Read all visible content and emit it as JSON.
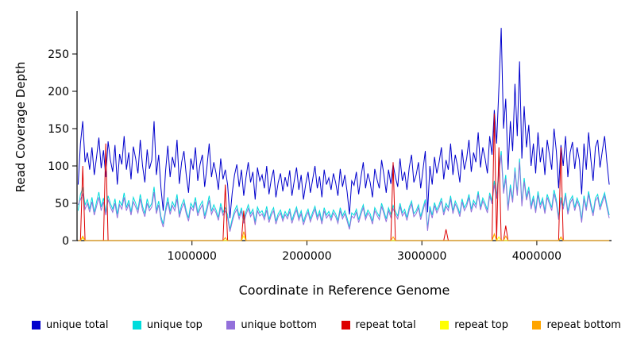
{
  "chart_data": {
    "type": "line",
    "title": "",
    "xlabel": "Coordinate in Reference Genome",
    "ylabel": "Read Coverage Depth",
    "xlim": [
      0,
      4650000
    ],
    "ylim": [
      0,
      285
    ],
    "grid": false,
    "legend_position": "bottom",
    "x_start": 10000,
    "x_step": 20000,
    "n_points": 232,
    "y_ticks": [
      0,
      50,
      100,
      150,
      200,
      250
    ],
    "x_ticks": [
      1000000,
      2000000,
      3000000,
      4000000
    ],
    "x_tick_labels": [
      "1000000",
      "2000000",
      "3000000",
      "4000000"
    ],
    "series": [
      {
        "name": "unique total",
        "color": "#0000CD",
        "values": [
          75,
          130,
          160,
          105,
          118,
          95,
          125,
          88,
          112,
          138,
          97,
          121,
          85,
          133,
          108,
          92,
          128,
          75,
          116,
          102,
          140,
          95,
          118,
          82,
          126,
          110,
          90,
          135,
          100,
          78,
          122,
          96,
          108,
          160,
          88,
          115,
          70,
          40,
          92,
          127,
          85,
          112,
          98,
          135,
          76,
          105,
          120,
          88,
          64,
          110,
          95,
          125,
          80,
          102,
          115,
          72,
          98,
          130,
          85,
          105,
          90,
          68,
          110,
          82,
          95,
          75,
          30,
          64,
          88,
          102,
          72,
          95,
          60,
          85,
          105,
          78,
          92,
          55,
          98,
          80,
          88,
          70,
          100,
          62,
          82,
          95,
          58,
          78,
          90,
          66,
          85,
          72,
          94,
          60,
          80,
          98,
          68,
          88,
          55,
          76,
          92,
          64,
          82,
          100,
          70,
          86,
          58,
          95,
          75,
          84,
          68,
          90,
          78,
          60,
          96,
          72,
          88,
          65,
          35,
          80,
          74,
          92,
          62,
          85,
          105,
          70,
          90,
          78,
          58,
          96,
          82,
          70,
          108,
          88,
          64,
          95,
          76,
          102,
          85,
          72,
          110,
          80,
          92,
          68,
          98,
          115,
          78,
          88,
          105,
          70,
          95,
          120,
          38,
          100,
          75,
          112,
          90,
          105,
          125,
          82,
          108,
          95,
          130,
          88,
          115,
          100,
          78,
          122,
          95,
          110,
          135,
          92,
          118,
          105,
          145,
          98,
          125,
          110,
          90,
          140,
          115,
          175,
          130,
          205,
          285,
          150,
          190,
          95,
          160,
          120,
          210,
          140,
          240,
          110,
          180,
          125,
          155,
          100,
          130,
          90,
          145,
          105,
          125,
          88,
          135,
          115,
          95,
          150,
          120,
          70,
          128,
          100,
          140,
          85,
          118,
          132,
          96,
          125,
          108,
          62,
          130,
          95,
          145,
          110,
          80,
          125,
          135,
          98,
          120,
          140,
          105,
          75
        ]
      },
      {
        "name": "unique top",
        "color": "#00DCDC",
        "values": [
          40,
          62,
          70,
          48,
          55,
          42,
          58,
          38,
          52,
          65,
          45,
          57,
          38,
          60,
          50,
          42,
          56,
          35,
          53,
          47,
          64,
          44,
          54,
          38,
          58,
          50,
          41,
          62,
          46,
          36,
          56,
          44,
          50,
          72,
          40,
          53,
          32,
          22,
          42,
          58,
          39,
          52,
          45,
          62,
          35,
          48,
          55,
          40,
          30,
          50,
          44,
          58,
          37,
          47,
          53,
          33,
          45,
          60,
          39,
          48,
          41,
          31,
          50,
          38,
          44,
          34,
          15,
          29,
          40,
          47,
          33,
          44,
          27,
          39,
          48,
          36,
          42,
          25,
          45,
          37,
          40,
          32,
          46,
          28,
          38,
          44,
          26,
          36,
          41,
          30,
          39,
          33,
          43,
          27,
          37,
          45,
          31,
          40,
          25,
          35,
          42,
          29,
          38,
          46,
          32,
          40,
          26,
          44,
          34,
          39,
          31,
          41,
          36,
          27,
          44,
          33,
          40,
          30,
          18,
          37,
          34,
          42,
          28,
          39,
          48,
          32,
          41,
          36,
          26,
          44,
          38,
          32,
          50,
          40,
          29,
          44,
          35,
          47,
          39,
          33,
          50,
          37,
          42,
          31,
          45,
          53,
          36,
          40,
          48,
          32,
          44,
          55,
          16,
          46,
          34,
          51,
          41,
          48,
          57,
          38,
          50,
          44,
          60,
          40,
          53,
          46,
          36,
          56,
          44,
          50,
          62,
          42,
          54,
          48,
          66,
          45,
          57,
          50,
          41,
          64,
          53,
          80,
          60,
          95,
          120,
          68,
          88,
          44,
          75,
          55,
          98,
          64,
          110,
          50,
          84,
          58,
          72,
          46,
          60,
          41,
          66,
          48,
          57,
          40,
          62,
          53,
          44,
          68,
          55,
          32,
          58,
          46,
          64,
          39,
          54,
          60,
          44,
          57,
          49,
          28,
          60,
          44,
          66,
          50,
          37,
          57,
          62,
          45,
          55,
          64,
          48,
          34
        ]
      },
      {
        "name": "unique bottom",
        "color": "#9370DB",
        "values": [
          48,
          55,
          62,
          42,
          50,
          38,
          52,
          34,
          46,
          58,
          40,
          52,
          34,
          55,
          45,
          38,
          50,
          30,
          48,
          42,
          58,
          40,
          49,
          34,
          52,
          45,
          37,
          56,
          41,
          32,
          50,
          40,
          45,
          65,
          36,
          48,
          28,
          18,
          38,
          52,
          35,
          47,
          40,
          56,
          31,
          43,
          50,
          36,
          26,
          45,
          40,
          52,
          33,
          42,
          48,
          29,
          40,
          54,
          35,
          43,
          37,
          27,
          45,
          34,
          40,
          30,
          12,
          25,
          36,
          42,
          29,
          40,
          23,
          35,
          43,
          32,
          38,
          21,
          40,
          33,
          36,
          28,
          41,
          24,
          34,
          40,
          22,
          32,
          37,
          26,
          35,
          29,
          39,
          23,
          33,
          41,
          27,
          36,
          21,
          31,
          38,
          25,
          34,
          42,
          28,
          36,
          22,
          40,
          30,
          35,
          27,
          37,
          32,
          23,
          40,
          29,
          36,
          26,
          15,
          33,
          30,
          38,
          24,
          35,
          44,
          28,
          37,
          32,
          22,
          40,
          34,
          28,
          46,
          36,
          25,
          40,
          31,
          43,
          35,
          29,
          46,
          33,
          38,
          27,
          41,
          49,
          32,
          36,
          44,
          28,
          40,
          51,
          13,
          42,
          30,
          47,
          37,
          44,
          53,
          34,
          46,
          40,
          56,
          36,
          49,
          42,
          32,
          52,
          40,
          46,
          58,
          38,
          50,
          44,
          62,
          41,
          53,
          46,
          37,
          60,
          49,
          75,
          56,
          90,
          115,
          63,
          83,
          40,
          70,
          51,
          93,
          60,
          105,
          46,
          79,
          54,
          67,
          42,
          56,
          37,
          61,
          44,
          53,
          36,
          58,
          49,
          40,
          63,
          50,
          28,
          54,
          42,
          60,
          35,
          50,
          56,
          40,
          53,
          45,
          24,
          56,
          40,
          62,
          46,
          33,
          53,
          58,
          41,
          51,
          60,
          44,
          30
        ]
      },
      {
        "name": "repeat total",
        "color": "#DD0000",
        "default": 0,
        "spikes": {
          "2": 100,
          "12": 130,
          "64": 75,
          "72": 40,
          "137": 105,
          "160": 15,
          "181": 170,
          "183": 125,
          "186": 20,
          "210": 125
        }
      },
      {
        "name": "repeat top",
        "color": "#FFFF00",
        "default": 0,
        "spikes": {
          "2": 4,
          "72": 6,
          "181": 8,
          "183": 5,
          "210": 4
        }
      },
      {
        "name": "repeat bottom",
        "color": "#FFA500",
        "default": 0,
        "spikes": {
          "2": 6,
          "64": 4,
          "72": 12,
          "137": 5,
          "181": 9,
          "186": 6,
          "210": 5
        }
      }
    ]
  }
}
